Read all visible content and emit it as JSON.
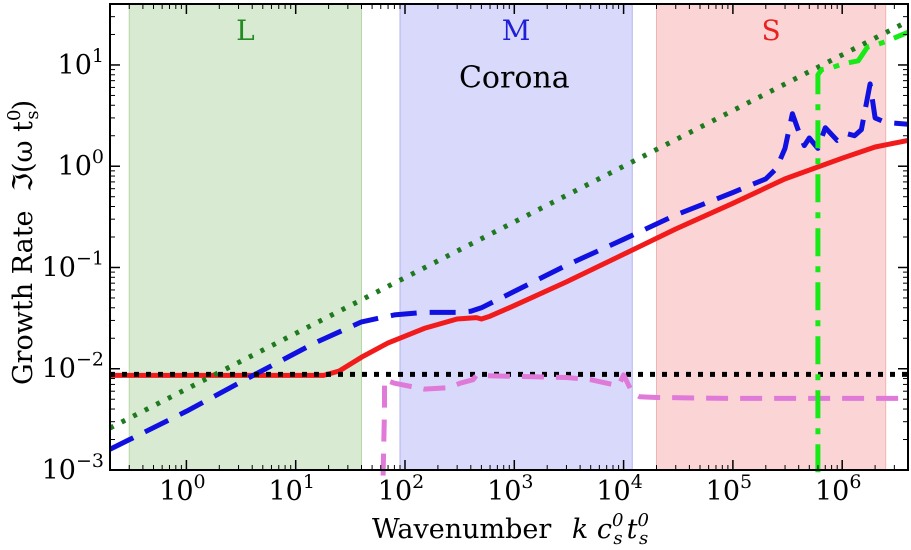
{
  "chart_data": {
    "type": "line",
    "title": "",
    "xlabel": "Wavenumber  k c_s^0 t_s^0",
    "ylabel": "Growth Rate  ℑ(ω t_s^0)",
    "xscale": "log",
    "yscale": "log",
    "xlim": [
      0.2,
      4000000
    ],
    "ylim": [
      0.001,
      40
    ],
    "grid": false,
    "axis_text": {
      "xlabel_main": "Wavenumber",
      "xlabel_math": "k c",
      "ylabel_main": "Growth Rate",
      "ylabel_math": "ℑ(ω t",
      "sub_s": "s",
      "sup_0": "0",
      "t": "t",
      "close_paren": ")"
    },
    "x_ticks": [
      {
        "base": "10",
        "exp": "0",
        "value": 1
      },
      {
        "base": "10",
        "exp": "1",
        "value": 10
      },
      {
        "base": "10",
        "exp": "2",
        "value": 100
      },
      {
        "base": "10",
        "exp": "3",
        "value": 1000
      },
      {
        "base": "10",
        "exp": "4",
        "value": 10000
      },
      {
        "base": "10",
        "exp": "5",
        "value": 100000
      },
      {
        "base": "10",
        "exp": "6",
        "value": 1000000
      }
    ],
    "y_ticks": [
      {
        "base": "10",
        "exp": "−3",
        "value": 0.001
      },
      {
        "base": "10",
        "exp": "−2",
        "value": 0.01
      },
      {
        "base": "10",
        "exp": "−1",
        "value": 0.1
      },
      {
        "base": "10",
        "exp": "0",
        "value": 1
      },
      {
        "base": "10",
        "exp": "1",
        "value": 10
      }
    ],
    "bands": [
      {
        "name": "band-L",
        "label": "L",
        "x_range": [
          0.3,
          40
        ],
        "fill": "#d9ead3",
        "edge": "#b6d7a8",
        "label_color": "#228b22"
      },
      {
        "name": "band-M",
        "label": "M",
        "x_range": [
          90,
          12000
        ],
        "fill": "#d9d9fb",
        "edge": "#b4b4f0",
        "label_color": "#1f1fd6"
      },
      {
        "name": "band-S",
        "label": "S",
        "x_range": [
          20000,
          2500000
        ],
        "fill": "#fbd5d5",
        "edge": "#f0b4b4",
        "label_color": "#e8231f"
      }
    ],
    "annotations": [
      {
        "text": "Corona",
        "x": 1000,
        "y": 7.5
      }
    ],
    "series": [
      {
        "name": "red-solid",
        "color": "#f21b1b",
        "dash": "solid",
        "width": 5,
        "x": [
          0.2,
          18,
          25,
          40,
          70,
          150,
          300,
          450,
          500,
          600,
          1000,
          3000,
          10000,
          30000,
          100000,
          300000,
          1000000,
          2000000,
          4000000
        ],
        "y": [
          0.0086,
          0.0086,
          0.0095,
          0.013,
          0.018,
          0.025,
          0.031,
          0.032,
          0.031,
          0.033,
          0.042,
          0.072,
          0.135,
          0.24,
          0.43,
          0.75,
          1.2,
          1.55,
          1.8
        ]
      },
      {
        "name": "blue-dashed",
        "color": "#1010e0",
        "dash": "26 13",
        "width": 5,
        "x": [
          0.2,
          1,
          4,
          15,
          40,
          80,
          150,
          300,
          400,
          500,
          1000,
          3000,
          10000,
          30000,
          100000,
          150000,
          200000,
          250000,
          300000,
          350000,
          400000,
          450000,
          500000,
          600000,
          700000,
          900000,
          1100000,
          1300000,
          1500000,
          1650000,
          1800000,
          2000000,
          2500000,
          4000000
        ],
        "y": [
          0.0016,
          0.0038,
          0.0085,
          0.018,
          0.029,
          0.034,
          0.036,
          0.036,
          0.037,
          0.04,
          0.058,
          0.105,
          0.19,
          0.33,
          0.55,
          0.66,
          0.75,
          0.95,
          1.5,
          3.3,
          2.2,
          1.6,
          1.9,
          1.5,
          2.4,
          1.8,
          2.1,
          2.0,
          2.3,
          4.0,
          6.5,
          3.0,
          2.7,
          2.6
        ]
      },
      {
        "name": "green-dotted",
        "color": "#1f7a1f",
        "dash": "4 9",
        "width": 5,
        "x": [
          0.2,
          4000000
        ],
        "y": [
          0.0026,
          27
        ]
      },
      {
        "name": "black-dotted",
        "color": "#000000",
        "dash": "5 7",
        "width": 5,
        "x": [
          0.2,
          4000000
        ],
        "y": [
          0.0088,
          0.0088
        ]
      },
      {
        "name": "violet-dashed",
        "color": "#e07ad8",
        "dash": "22 12",
        "width": 5,
        "x": [
          63,
          65,
          65,
          80,
          150,
          250,
          320,
          420,
          450,
          1000,
          3000,
          5000,
          7000,
          9000,
          10000,
          12000,
          14000,
          20000,
          100000,
          1000000,
          4000000
        ],
        "y": [
          0.00088,
          0.004,
          0.0078,
          0.0072,
          0.0063,
          0.0065,
          0.0072,
          0.0078,
          0.0086,
          0.0084,
          0.0082,
          0.0078,
          0.0072,
          0.0068,
          0.0087,
          0.0058,
          0.0053,
          0.0052,
          0.0051,
          0.0051,
          0.0051
        ]
      },
      {
        "name": "lime-dashdot",
        "color": "#18ea18",
        "dash": "28 10 6 10",
        "width": 5,
        "x": [
          600000,
          600000,
          650000,
          800000,
          1000000,
          1400000,
          1700000,
          2100000,
          2500000,
          3200000,
          4000000
        ],
        "y": [
          0.00095,
          8.0,
          9.0,
          9.4,
          10.2,
          11.0,
          15.0,
          16.0,
          17.0,
          19.0,
          21.0
        ]
      }
    ]
  }
}
